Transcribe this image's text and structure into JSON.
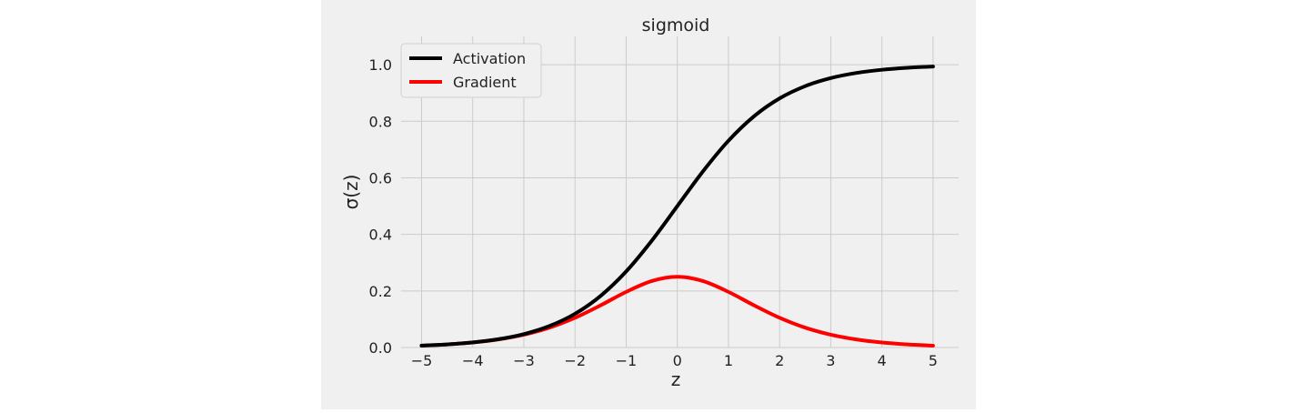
{
  "chart_data": {
    "type": "line",
    "title": "sigmoid",
    "xlabel": "z",
    "ylabel": "σ(z)",
    "xlim": [
      -5.4,
      5.5
    ],
    "ylim": [
      0,
      1.1
    ],
    "x_ticks": [
      -5,
      -4,
      -3,
      -2,
      -1,
      0,
      1,
      2,
      3,
      4,
      5
    ],
    "x_tick_labels": [
      "−5",
      "−4",
      "−3",
      "−2",
      "−1",
      "0",
      "1",
      "2",
      "3",
      "4",
      "5"
    ],
    "y_ticks": [
      0.0,
      0.2,
      0.4,
      0.6,
      0.8,
      1.0
    ],
    "y_tick_labels": [
      "0.0",
      "0.2",
      "0.4",
      "0.6",
      "0.8",
      "1.0"
    ],
    "grid": true,
    "legend_position": "top-left",
    "x": [
      -5,
      -4.5,
      -4,
      -3.5,
      -3,
      -2.5,
      -2,
      -1.5,
      -1,
      -0.5,
      0,
      0.5,
      1,
      1.5,
      2,
      2.5,
      3,
      3.5,
      4,
      4.5,
      5
    ],
    "series": [
      {
        "name": "Activation",
        "color": "#000000",
        "values": [
          0.0067,
          0.011,
          0.018,
          0.0293,
          0.0474,
          0.0759,
          0.1192,
          0.1824,
          0.2689,
          0.3775,
          0.5,
          0.6225,
          0.7311,
          0.8176,
          0.8808,
          0.9241,
          0.9526,
          0.9707,
          0.982,
          0.989,
          0.9933
        ]
      },
      {
        "name": "Gradient",
        "color": "#ff0000",
        "values": [
          0.0066,
          0.0109,
          0.0177,
          0.0285,
          0.0452,
          0.0701,
          0.105,
          0.1491,
          0.1966,
          0.235,
          0.25,
          0.235,
          0.1966,
          0.1491,
          0.105,
          0.0701,
          0.0452,
          0.0285,
          0.0177,
          0.0109,
          0.0066
        ]
      }
    ]
  }
}
